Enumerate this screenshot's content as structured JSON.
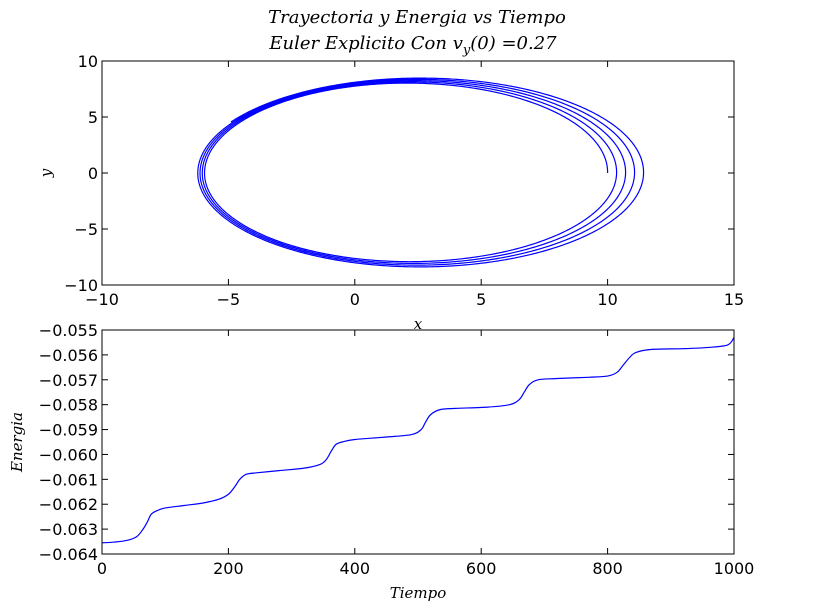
{
  "figure": {
    "title_line1": "Trayectoria y Energia vs Tiempo",
    "title_line2_prefix": "Euler Explicito Con v",
    "title_line2_sub": "y",
    "title_line2_suffix": "(0) =0.27"
  },
  "chart_data": [
    {
      "type": "line",
      "id": "trajectory",
      "xlabel": "x",
      "ylabel": "y",
      "xlim": [
        -10,
        15
      ],
      "ylim": [
        -10,
        10
      ],
      "xticks": [
        -10,
        -5,
        0,
        5,
        10,
        15
      ],
      "yticks": [
        -10,
        -5,
        0,
        5,
        10
      ],
      "xtick_labels": [
        "−10",
        "−5",
        "0",
        "5",
        "10",
        "15"
      ],
      "ytick_labels": [
        "−10",
        "−5",
        "0",
        "5",
        "10"
      ],
      "grid": false,
      "line_color": "#0000ff",
      "spiral": {
        "start": [
          10.0,
          0.0
        ],
        "end": [
          -5.8,
          3.1
        ],
        "turns": 5,
        "first_orbit": {
          "x_right": 10.0,
          "x_left": -5.9,
          "y_top": 8.0,
          "y_bottom": -7.8
        },
        "last_orbit": {
          "x_right": 11.6,
          "x_left": -6.3,
          "y_top": 8.5,
          "y_bottom": -8.5
        }
      }
    },
    {
      "type": "line",
      "id": "energy",
      "xlabel": "Tiempo",
      "ylabel": "Energia",
      "xlim": [
        0,
        1000
      ],
      "ylim": [
        -0.064,
        -0.055
      ],
      "xticks": [
        0,
        200,
        400,
        600,
        800,
        1000
      ],
      "yticks": [
        -0.064,
        -0.063,
        -0.062,
        -0.061,
        -0.06,
        -0.059,
        -0.058,
        -0.057,
        -0.056,
        -0.055
      ],
      "xtick_labels": [
        "0",
        "200",
        "400",
        "600",
        "800",
        "1000"
      ],
      "ytick_labels": [
        "−0.064",
        "−0.063",
        "−0.062",
        "−0.061",
        "−0.060",
        "−0.059",
        "−0.058",
        "−0.057",
        "−0.056",
        "−0.055"
      ],
      "grid": false,
      "line_color": "#0000ff",
      "points": [
        [
          0,
          -0.06355
        ],
        [
          20,
          -0.06352
        ],
        [
          40,
          -0.06345
        ],
        [
          55,
          -0.0633
        ],
        [
          65,
          -0.063
        ],
        [
          72,
          -0.0627
        ],
        [
          78,
          -0.0624
        ],
        [
          88,
          -0.06225
        ],
        [
          100,
          -0.06215
        ],
        [
          130,
          -0.06205
        ],
        [
          160,
          -0.06195
        ],
        [
          185,
          -0.0618
        ],
        [
          200,
          -0.0616
        ],
        [
          210,
          -0.0613
        ],
        [
          218,
          -0.061
        ],
        [
          228,
          -0.0608
        ],
        [
          240,
          -0.06075
        ],
        [
          280,
          -0.06065
        ],
        [
          320,
          -0.06055
        ],
        [
          345,
          -0.0604
        ],
        [
          355,
          -0.0602
        ],
        [
          362,
          -0.0599
        ],
        [
          370,
          -0.0596
        ],
        [
          380,
          -0.0595
        ],
        [
          400,
          -0.0594
        ],
        [
          450,
          -0.0593
        ],
        [
          490,
          -0.0592
        ],
        [
          505,
          -0.059
        ],
        [
          512,
          -0.0587
        ],
        [
          520,
          -0.0584
        ],
        [
          535,
          -0.0582
        ],
        [
          560,
          -0.05815
        ],
        [
          610,
          -0.0581
        ],
        [
          645,
          -0.058
        ],
        [
          660,
          -0.0578
        ],
        [
          668,
          -0.0575
        ],
        [
          676,
          -0.0572
        ],
        [
          690,
          -0.057
        ],
        [
          720,
          -0.05695
        ],
        [
          770,
          -0.0569
        ],
        [
          800,
          -0.05685
        ],
        [
          815,
          -0.0567
        ],
        [
          825,
          -0.0564
        ],
        [
          835,
          -0.0561
        ],
        [
          845,
          -0.0559
        ],
        [
          870,
          -0.05578
        ],
        [
          920,
          -0.05575
        ],
        [
          960,
          -0.0557
        ],
        [
          990,
          -0.0556
        ],
        [
          1000,
          -0.0553
        ]
      ]
    }
  ]
}
